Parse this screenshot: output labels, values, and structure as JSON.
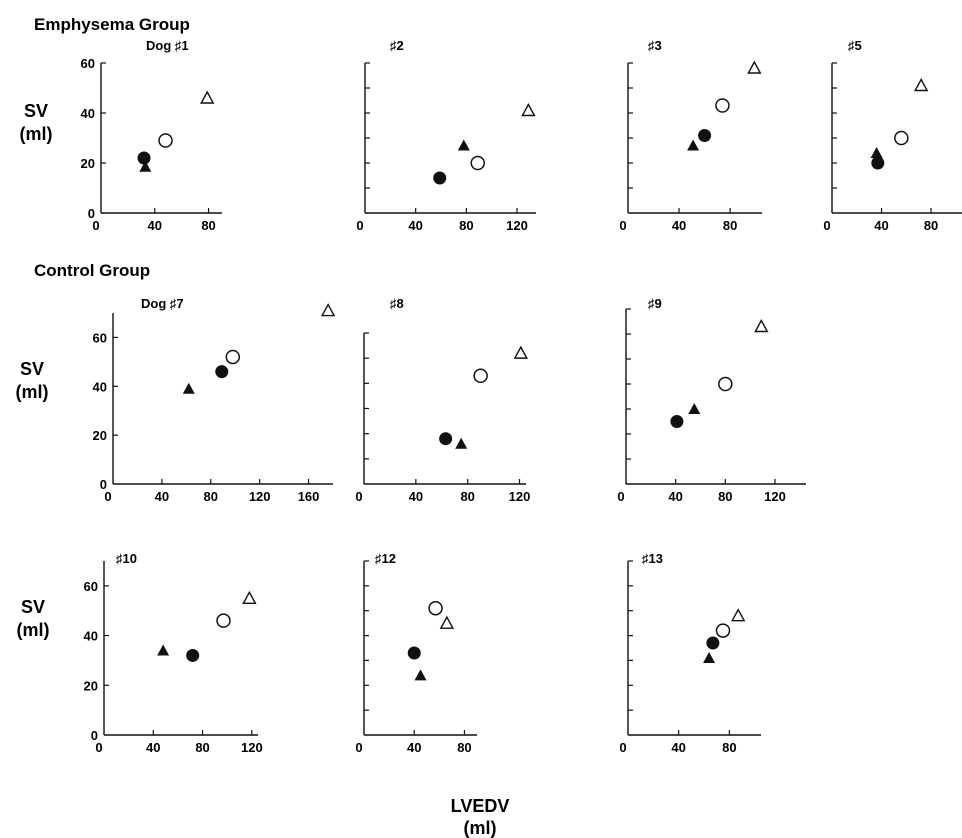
{
  "groups": {
    "emphysema": "Emphysema Group",
    "control": "Control Group"
  },
  "y_axis": {
    "line1": "SV",
    "line2": "(ml)"
  },
  "x_axis": {
    "line1": "LVEDV",
    "line2": "(ml)"
  },
  "chart_data": [
    {
      "type": "scatter",
      "group": "emphysema",
      "label": "Dog ♯1",
      "xlim": [
        0,
        90
      ],
      "ylim": [
        0,
        60
      ],
      "xticks": [
        0,
        40,
        80
      ],
      "yticks": [
        20,
        40,
        60
      ],
      "ytick_labels": true,
      "points": [
        {
          "x": 32,
          "y": 22,
          "marker": "filled-circle"
        },
        {
          "x": 33,
          "y": 18.5,
          "marker": "filled-triangle"
        },
        {
          "x": 48,
          "y": 29,
          "marker": "open-circle"
        },
        {
          "x": 79,
          "y": 46,
          "marker": "open-triangle"
        }
      ]
    },
    {
      "type": "scatter",
      "group": "emphysema",
      "label": "♯2",
      "xlim": [
        0,
        135
      ],
      "ylim": [
        0,
        60
      ],
      "xticks": [
        0,
        40,
        80,
        120
      ],
      "yticks": [
        10,
        20,
        30,
        40,
        50,
        60
      ],
      "ytick_labels": false,
      "points": [
        {
          "x": 59,
          "y": 14,
          "marker": "filled-circle"
        },
        {
          "x": 78,
          "y": 27,
          "marker": "filled-triangle"
        },
        {
          "x": 89,
          "y": 20,
          "marker": "open-circle"
        },
        {
          "x": 129,
          "y": 41,
          "marker": "open-triangle"
        }
      ]
    },
    {
      "type": "scatter",
      "group": "emphysema",
      "label": "♯3",
      "xlim": [
        0,
        105
      ],
      "ylim": [
        0,
        60
      ],
      "xticks": [
        0,
        40,
        80
      ],
      "yticks": [
        10,
        20,
        30,
        40,
        50,
        60
      ],
      "ytick_labels": false,
      "points": [
        {
          "x": 51,
          "y": 27,
          "marker": "filled-triangle"
        },
        {
          "x": 60,
          "y": 31,
          "marker": "filled-circle"
        },
        {
          "x": 74,
          "y": 43,
          "marker": "open-circle"
        },
        {
          "x": 99,
          "y": 58,
          "marker": "open-triangle"
        }
      ]
    },
    {
      "type": "scatter",
      "group": "emphysema",
      "label": "♯5",
      "xlim": [
        0,
        105
      ],
      "ylim": [
        0,
        60
      ],
      "xticks": [
        0,
        40,
        80
      ],
      "yticks": [
        10,
        20,
        30,
        40,
        50,
        60
      ],
      "ytick_labels": false,
      "points": [
        {
          "x": 36,
          "y": 24,
          "marker": "filled-triangle"
        },
        {
          "x": 37,
          "y": 20,
          "marker": "filled-circle"
        },
        {
          "x": 56,
          "y": 30,
          "marker": "open-circle"
        },
        {
          "x": 72,
          "y": 51,
          "marker": "open-triangle"
        }
      ]
    },
    {
      "type": "scatter",
      "group": "control",
      "label": "Dog ♯7",
      "xlim": [
        0,
        180
      ],
      "ylim": [
        0,
        70
      ],
      "xticks": [
        0,
        40,
        80,
        120,
        160
      ],
      "yticks": [
        20,
        40,
        60
      ],
      "ytick_labels": true,
      "points": [
        {
          "x": 62,
          "y": 39,
          "marker": "filled-triangle"
        },
        {
          "x": 89,
          "y": 46,
          "marker": "filled-circle"
        },
        {
          "x": 98,
          "y": 52,
          "marker": "open-circle"
        },
        {
          "x": 176,
          "y": 71,
          "marker": "open-triangle"
        }
      ]
    },
    {
      "type": "scatter",
      "group": "control",
      "label": "♯8",
      "xlim": [
        0,
        125
      ],
      "ylim": [
        0,
        60
      ],
      "xticks": [
        0,
        40,
        80,
        120
      ],
      "yticks": [
        10,
        20,
        30,
        40,
        50,
        60
      ],
      "ytick_labels": false,
      "points": [
        {
          "x": 63,
          "y": 18,
          "marker": "filled-circle"
        },
        {
          "x": 75,
          "y": 16,
          "marker": "filled-triangle"
        },
        {
          "x": 90,
          "y": 43,
          "marker": "open-circle"
        },
        {
          "x": 121,
          "y": 52,
          "marker": "open-triangle"
        }
      ]
    },
    {
      "type": "scatter",
      "group": "control",
      "label": "♯9",
      "xlim": [
        0,
        145
      ],
      "ylim": [
        0,
        70
      ],
      "xticks": [
        0,
        40,
        80,
        120
      ],
      "yticks": [
        10,
        20,
        30,
        40,
        50,
        60,
        70
      ],
      "ytick_labels": false,
      "points": [
        {
          "x": 41,
          "y": 25,
          "marker": "filled-circle"
        },
        {
          "x": 55,
          "y": 30,
          "marker": "filled-triangle"
        },
        {
          "x": 80,
          "y": 40,
          "marker": "open-circle"
        },
        {
          "x": 109,
          "y": 63,
          "marker": "open-triangle"
        }
      ]
    },
    {
      "type": "scatter",
      "group": "control",
      "label": "♯10",
      "xlim": [
        0,
        125
      ],
      "ylim": [
        0,
        70
      ],
      "xticks": [
        0,
        40,
        80,
        120
      ],
      "yticks": [
        20,
        40,
        60
      ],
      "ytick_labels": true,
      "points": [
        {
          "x": 48,
          "y": 34,
          "marker": "filled-triangle"
        },
        {
          "x": 72,
          "y": 32,
          "marker": "filled-circle"
        },
        {
          "x": 97,
          "y": 46,
          "marker": "open-circle"
        },
        {
          "x": 118,
          "y": 55,
          "marker": "open-triangle"
        }
      ]
    },
    {
      "type": "scatter",
      "group": "control",
      "label": "♯12",
      "xlim": [
        0,
        90
      ],
      "ylim": [
        0,
        70
      ],
      "xticks": [
        0,
        40,
        80
      ],
      "yticks": [
        10,
        20,
        30,
        40,
        50,
        60,
        70
      ],
      "ytick_labels": false,
      "points": [
        {
          "x": 40,
          "y": 33,
          "marker": "filled-circle"
        },
        {
          "x": 45,
          "y": 24,
          "marker": "filled-triangle"
        },
        {
          "x": 57,
          "y": 51,
          "marker": "open-circle"
        },
        {
          "x": 66,
          "y": 45,
          "marker": "open-triangle"
        }
      ]
    },
    {
      "type": "scatter",
      "group": "control",
      "label": "♯13",
      "xlim": [
        0,
        105
      ],
      "ylim": [
        0,
        70
      ],
      "xticks": [
        0,
        40,
        80
      ],
      "yticks": [
        10,
        20,
        30,
        40,
        50,
        60,
        70
      ],
      "ytick_labels": false,
      "points": [
        {
          "x": 64,
          "y": 31,
          "marker": "filled-triangle"
        },
        {
          "x": 67,
          "y": 37,
          "marker": "filled-circle"
        },
        {
          "x": 75,
          "y": 42,
          "marker": "open-circle"
        },
        {
          "x": 87,
          "y": 48,
          "marker": "open-triangle"
        }
      ]
    }
  ]
}
